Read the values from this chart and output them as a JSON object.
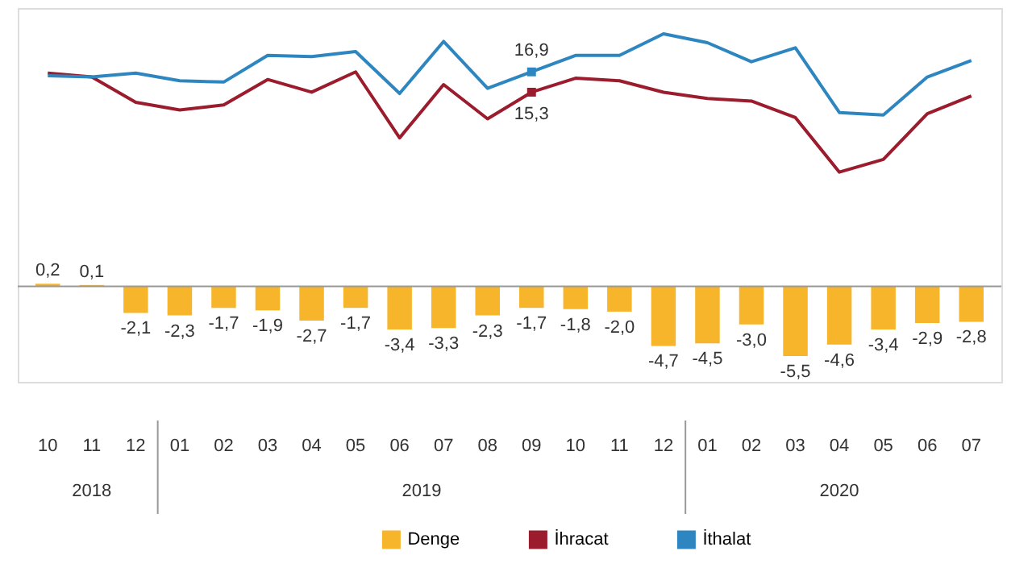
{
  "chart_data": {
    "type": "bar",
    "categories": [
      "10",
      "11",
      "12",
      "01",
      "02",
      "03",
      "04",
      "05",
      "06",
      "07",
      "08",
      "09",
      "10",
      "11",
      "12",
      "01",
      "02",
      "03",
      "04",
      "05",
      "06",
      "07"
    ],
    "annotations": [
      "2018",
      "2019",
      "2020"
    ],
    "series": [
      {
        "name": "Denge",
        "color": "#f7b52c",
        "values": [
          0.2,
          0.1,
          -2.1,
          -2.3,
          -1.7,
          -1.9,
          -2.7,
          -1.7,
          -3.4,
          -3.3,
          -2.3,
          -1.7,
          -1.8,
          -2.0,
          -4.7,
          -4.5,
          -3.0,
          -5.5,
          -4.6,
          -3.4,
          -2.9,
          -2.8
        ],
        "value_labels": [
          "0,2",
          "0,1",
          "-2,1",
          "-2,3",
          "-1,7",
          "-1,9",
          "-2,7",
          "-1,7",
          "-3,4",
          "-3,3",
          "-2,3",
          "-1,7",
          "-1,8",
          "-2,0",
          "-4,7",
          "-4,5",
          "-3,0",
          "-5,5",
          "-4,6",
          "-3,4",
          "-2,9",
          "-2,8"
        ]
      },
      {
        "name": "İhracat",
        "type": "line",
        "color": "#9b1c2c",
        "values": [
          16.8,
          16.5,
          14.5,
          13.9,
          14.3,
          16.3,
          15.3,
          16.9,
          11.7,
          15.9,
          13.2,
          15.3,
          16.4,
          16.2,
          15.3,
          14.8,
          14.6,
          13.3,
          9.0,
          10.0,
          13.6,
          15.0
        ],
        "value_labels": [
          null,
          null,
          null,
          null,
          null,
          null,
          null,
          null,
          null,
          null,
          null,
          "15,3",
          null,
          null,
          null,
          null,
          null,
          null,
          null,
          null,
          null,
          null
        ]
      },
      {
        "name": "İthalat",
        "type": "line",
        "color": "#2e86c1",
        "values": [
          16.6,
          16.5,
          16.8,
          16.2,
          16.1,
          18.2,
          18.1,
          18.5,
          15.2,
          19.3,
          15.6,
          16.9,
          18.2,
          18.2,
          19.9,
          19.2,
          17.7,
          18.8,
          13.7,
          13.5,
          16.5,
          17.8
        ],
        "value_labels": [
          null,
          null,
          null,
          null,
          null,
          null,
          null,
          null,
          null,
          null,
          null,
          "16,9",
          null,
          null,
          null,
          null,
          null,
          null,
          null,
          null,
          null,
          null
        ]
      }
    ],
    "tick_labels": "x",
    "grid": false,
    "legend": "bottom"
  }
}
